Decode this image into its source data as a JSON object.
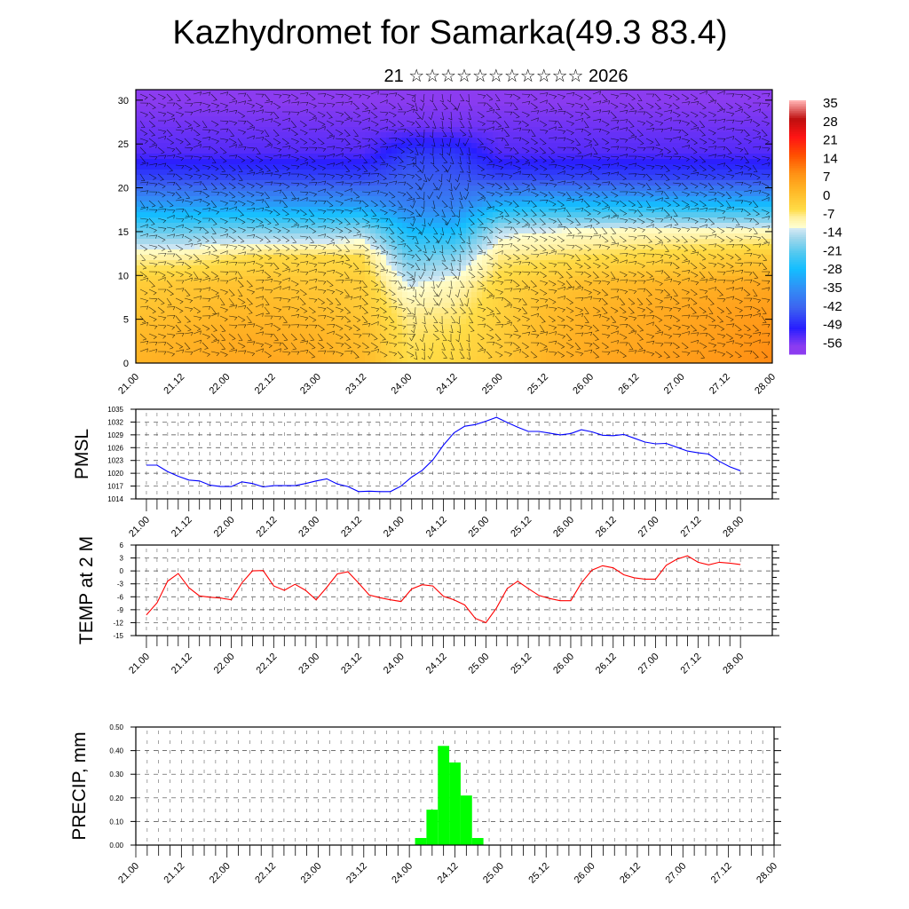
{
  "title": "Kazhydromet for Samarka(49.3 83.4)",
  "subtitle": "21 ☆☆☆☆☆☆☆☆☆☆☆ 2026",
  "x_tick_labels": [
    "21.00",
    "21.12",
    "22.00",
    "22.12",
    "23.00",
    "23.12",
    "24.00",
    "24.12",
    "25.00",
    "25.12",
    "26.00",
    "26.12",
    "27.00",
    "27.12",
    "28.00"
  ],
  "chart_data": [
    {
      "type": "heatmap",
      "name": "temperature cross-section",
      "x_hours": [
        0,
        12,
        24,
        36,
        48,
        60,
        72,
        84,
        96,
        108,
        120,
        132,
        144,
        156,
        168
      ],
      "y_levels": [
        0,
        3,
        6,
        9,
        12,
        15,
        18,
        21,
        24,
        27,
        30
      ],
      "ylim": [
        0,
        31.2
      ],
      "yticks": [
        "0",
        "5",
        "10",
        "15",
        "20",
        "25",
        "30"
      ],
      "values": [
        [
          1,
          2,
          3,
          3,
          2,
          0,
          -7,
          -6,
          -3,
          1,
          3,
          4,
          5,
          6,
          8
        ],
        [
          0,
          1,
          2,
          2,
          1,
          -1,
          -8,
          -7,
          -4,
          0,
          2,
          3,
          4,
          5,
          7
        ],
        [
          -2,
          -1,
          0,
          0,
          -1,
          -3,
          -10,
          -9,
          -5,
          -1,
          1,
          2,
          3,
          4,
          5
        ],
        [
          -4,
          -3,
          -2,
          -2,
          -3,
          -4,
          -15,
          -12,
          -6,
          -3,
          -1,
          0,
          1,
          2,
          3
        ],
        [
          -10,
          -10,
          -8,
          -6,
          -6,
          -7,
          -22,
          -20,
          -9,
          -8,
          -7,
          -6,
          -5,
          -4,
          -3
        ],
        [
          -22,
          -22,
          -20,
          -20,
          -20,
          -18,
          -30,
          -30,
          -16,
          -14,
          -13,
          -12,
          -12,
          -12,
          -12
        ],
        [
          -35,
          -35,
          -35,
          -35,
          -35,
          -35,
          -40,
          -40,
          -32,
          -30,
          -30,
          -30,
          -30,
          -30,
          -30
        ],
        [
          -48,
          -48,
          -48,
          -48,
          -48,
          -48,
          -45,
          -46,
          -48,
          -48,
          -48,
          -48,
          -48,
          -48,
          -48
        ],
        [
          -56,
          -56,
          -56,
          -56,
          -56,
          -56,
          -50,
          -50,
          -56,
          -56,
          -56,
          -56,
          -56,
          -56,
          -56
        ],
        [
          -58,
          -58,
          -58,
          -58,
          -58,
          -58,
          -58,
          -58,
          -58,
          -58,
          -58,
          -58,
          -58,
          -58,
          -58
        ],
        [
          -60,
          -60,
          -60,
          -60,
          -60,
          -60,
          -60,
          -60,
          -60,
          -60,
          -60,
          -60,
          -60,
          -60,
          -60
        ]
      ],
      "colorbar_labels": [
        "35",
        "28",
        "21",
        "14",
        "7",
        "0",
        "-7",
        "-14",
        "-21",
        "-28",
        "-35",
        "-42",
        "-49",
        "-56"
      ],
      "overlay": "wind barbs"
    },
    {
      "type": "line",
      "ylabel": "PMSL",
      "color": "#0000ff",
      "x_start_hours": 0,
      "x_step_hours": 3,
      "xlim": [
        -3,
        177
      ],
      "ylim": [
        1014,
        1035
      ],
      "yticks": [
        "1014",
        "1017",
        "1020",
        "1023",
        "1026",
        "1029",
        "1032",
        "1035"
      ],
      "values": [
        1021.9,
        1021.9,
        1020.4,
        1019.3,
        1018.4,
        1018.2,
        1017.2,
        1016.9,
        1016.9,
        1018.0,
        1017.6,
        1016.8,
        1017.1,
        1017.1,
        1017.1,
        1017.6,
        1018.2,
        1018.7,
        1017.5,
        1016.9,
        1015.7,
        1015.8,
        1015.7,
        1015.7,
        1017.0,
        1019.1,
        1020.7,
        1023.1,
        1026.6,
        1029.5,
        1031.0,
        1031.4,
        1032.2,
        1033.1,
        1031.9,
        1030.8,
        1029.8,
        1029.8,
        1029.4,
        1029.0,
        1029.3,
        1030.2,
        1029.7,
        1028.9,
        1028.8,
        1029.1,
        1028.2,
        1027.3,
        1026.9,
        1027.0,
        1026.1,
        1025.2,
        1024.8,
        1024.5,
        1022.8,
        1021.5,
        1020.6
      ]
    },
    {
      "type": "line",
      "ylabel": "TEMP at 2 M",
      "color": "#ff0000",
      "x_start_hours": 0,
      "x_step_hours": 3,
      "xlim": [
        -3,
        177
      ],
      "ylim": [
        -15,
        6
      ],
      "yticks": [
        "-15",
        "-12",
        "-9",
        "-6",
        "-3",
        "0",
        "3",
        "6"
      ],
      "values": [
        -10.2,
        -7.4,
        -2.4,
        -0.6,
        -3.9,
        -5.8,
        -6.1,
        -6.3,
        -6.7,
        -2.8,
        0,
        0.1,
        -3.5,
        -4.5,
        -3.1,
        -4.5,
        -6.7,
        -3.8,
        -0.7,
        -0.2,
        -2.8,
        -5.6,
        -6.2,
        -6.7,
        -7.1,
        -4.2,
        -3.2,
        -3.5,
        -5.9,
        -6.7,
        -7.9,
        -11.0,
        -12.0,
        -8.6,
        -4.1,
        -2.4,
        -4.1,
        -5.7,
        -6.4,
        -6.9,
        -6.9,
        -2.8,
        0.2,
        1.2,
        0.7,
        -0.9,
        -1.6,
        -1.9,
        -1.9,
        1.3,
        2.7,
        3.5,
        2.0,
        1.4,
        2.0,
        1.8,
        1.5
      ]
    },
    {
      "type": "bar",
      "ylabel": "PRECIP, mm",
      "color": "#00ff00",
      "xlim": [
        0,
        168
      ],
      "ylim": [
        0,
        0.5
      ],
      "yticks": [
        "0.00",
        "0.10",
        "0.20",
        "0.30",
        "0.40",
        "0.50"
      ],
      "bar_width_hours": 3,
      "x_hours": [
        75,
        78,
        81,
        84,
        87,
        90
      ],
      "values": [
        0.03,
        0.15,
        0.42,
        0.35,
        0.21,
        0.03
      ]
    }
  ]
}
